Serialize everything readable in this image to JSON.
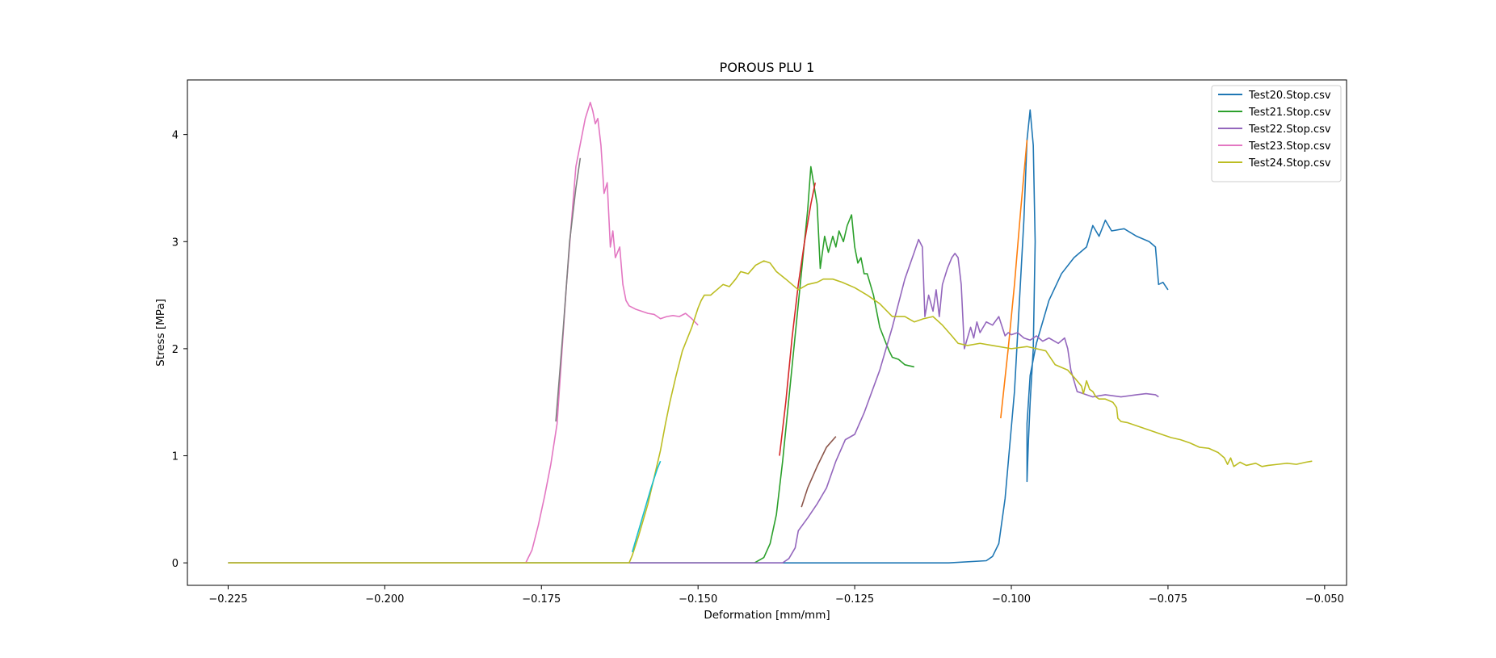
{
  "chart_data": {
    "type": "line",
    "title": "POROUS PLU 1",
    "xlabel": "Deformation [mm/mm]",
    "ylabel": "Stress [MPa]",
    "xlim": [
      -0.2315,
      -0.0465
    ],
    "ylim": [
      -0.21,
      4.51
    ],
    "xticks": [
      -0.225,
      -0.2,
      -0.175,
      -0.15,
      -0.125,
      -0.1,
      -0.075,
      -0.05
    ],
    "xtick_labels": [
      "−0.225",
      "−0.200",
      "−0.175",
      "−0.150",
      "−0.125",
      "−0.100",
      "−0.075",
      "−0.050"
    ],
    "yticks": [
      0,
      1,
      2,
      3,
      4
    ],
    "ytick_labels": [
      "0",
      "1",
      "2",
      "3",
      "4"
    ],
    "grid": false,
    "legend_position": "top-right",
    "series": [
      {
        "name": "Test20.Stop.csv",
        "color": "#1f77b4",
        "x": [
          -0.225,
          -0.2,
          -0.15,
          -0.11,
          -0.104,
          -0.103,
          -0.102,
          -0.101,
          -0.0995,
          -0.098,
          -0.0975,
          -0.097,
          -0.0965,
          -0.0962,
          -0.0965,
          -0.097,
          -0.0973,
          -0.0975,
          -0.0975,
          -0.097,
          -0.096,
          -0.095,
          -0.094,
          -0.092,
          -0.09,
          -0.088,
          -0.087,
          -0.086,
          -0.085,
          -0.084,
          -0.082,
          -0.08,
          -0.078,
          -0.077,
          -0.0765,
          -0.0758,
          -0.075
        ],
        "y": [
          0.0,
          0.0,
          0.0,
          0.0,
          0.02,
          0.06,
          0.18,
          0.6,
          1.6,
          3.2,
          3.95,
          4.23,
          3.9,
          3.0,
          2.0,
          1.5,
          1.1,
          0.76,
          1.3,
          1.75,
          2.05,
          2.25,
          2.45,
          2.7,
          2.85,
          2.95,
          3.15,
          3.05,
          3.2,
          3.1,
          3.12,
          3.05,
          3.0,
          2.95,
          2.6,
          2.62,
          2.55
        ]
      },
      {
        "name": "",
        "color": "#ff7f0e",
        "x": [
          -0.1017,
          -0.1005,
          -0.0995,
          -0.0985,
          -0.0975
        ],
        "y": [
          1.35,
          2.0,
          2.6,
          3.3,
          3.95
        ]
      },
      {
        "name": "Test21.Stop.csv",
        "color": "#2ca02c",
        "x": [
          -0.225,
          -0.2,
          -0.16,
          -0.141,
          -0.1395,
          -0.1385,
          -0.1375,
          -0.1365,
          -0.1325,
          -0.132,
          -0.131,
          -0.1305,
          -0.1298,
          -0.1292,
          -0.1285,
          -0.128,
          -0.1275,
          -0.1268,
          -0.1262,
          -0.1255,
          -0.125,
          -0.1245,
          -0.124,
          -0.1235,
          -0.123,
          -0.122,
          -0.1215,
          -0.121,
          -0.12,
          -0.1195,
          -0.119,
          -0.118,
          -0.117,
          -0.1155
        ],
        "y": [
          0.0,
          0.0,
          0.0,
          0.0,
          0.05,
          0.18,
          0.45,
          0.95,
          3.3,
          3.7,
          3.35,
          2.75,
          3.05,
          2.9,
          3.05,
          2.95,
          3.1,
          3.0,
          3.15,
          3.25,
          2.95,
          2.8,
          2.85,
          2.7,
          2.7,
          2.5,
          2.35,
          2.2,
          2.05,
          1.98,
          1.92,
          1.9,
          1.85,
          1.83
        ]
      },
      {
        "name": "",
        "color": "#d62728",
        "x": [
          -0.137,
          -0.136,
          -0.135,
          -0.134,
          -0.133,
          -0.132,
          -0.1313
        ],
        "y": [
          1.0,
          1.5,
          2.1,
          2.6,
          3.0,
          3.35,
          3.55
        ]
      },
      {
        "name": "Test22.Stop.csv",
        "color": "#9467bd",
        "x": [
          -0.225,
          -0.2,
          -0.16,
          -0.138,
          -0.1365,
          -0.1355,
          -0.1345,
          -0.134,
          -0.1325,
          -0.131,
          -0.1295,
          -0.128,
          -0.1265,
          -0.125,
          -0.1235,
          -0.121,
          -0.119,
          -0.117,
          -0.1155,
          -0.1148,
          -0.1142,
          -0.1138,
          -0.1132,
          -0.1125,
          -0.112,
          -0.1115,
          -0.111,
          -0.1102,
          -0.1095,
          -0.109,
          -0.1085,
          -0.108,
          -0.1075,
          -0.1065,
          -0.106,
          -0.1055,
          -0.105,
          -0.104,
          -0.103,
          -0.102,
          -0.101,
          -0.1005,
          -0.1,
          -0.099,
          -0.098,
          -0.097,
          -0.096,
          -0.095,
          -0.094,
          -0.0925,
          -0.0915,
          -0.091,
          -0.0905,
          -0.0895,
          -0.0885,
          -0.087,
          -0.085,
          -0.0825,
          -0.08,
          -0.0785,
          -0.077,
          -0.0765
        ],
        "y": [
          0.0,
          0.0,
          0.0,
          0.0,
          0.0,
          0.04,
          0.14,
          0.3,
          0.42,
          0.55,
          0.7,
          0.95,
          1.15,
          1.2,
          1.4,
          1.8,
          2.2,
          2.65,
          2.9,
          3.02,
          2.95,
          2.3,
          2.5,
          2.35,
          2.55,
          2.3,
          2.6,
          2.75,
          2.85,
          2.89,
          2.85,
          2.6,
          2.0,
          2.2,
          2.1,
          2.25,
          2.15,
          2.25,
          2.22,
          2.3,
          2.12,
          2.15,
          2.13,
          2.15,
          2.1,
          2.08,
          2.12,
          2.07,
          2.1,
          2.05,
          2.1,
          2.0,
          1.8,
          1.6,
          1.58,
          1.55,
          1.57,
          1.55,
          1.57,
          1.58,
          1.57,
          1.55
        ]
      },
      {
        "name": "",
        "color": "#8c564b",
        "x": [
          -0.1335,
          -0.1325,
          -0.131,
          -0.1295,
          -0.128
        ],
        "y": [
          0.52,
          0.7,
          0.9,
          1.08,
          1.18
        ]
      },
      {
        "name": "Test23.Stop.csv",
        "color": "#e377c2",
        "x": [
          -0.225,
          -0.2,
          -0.18,
          -0.1775,
          -0.1765,
          -0.1755,
          -0.1745,
          -0.1735,
          -0.1725,
          -0.171,
          -0.1695,
          -0.168,
          -0.1672,
          -0.1668,
          -0.1664,
          -0.166,
          -0.1655,
          -0.165,
          -0.1645,
          -0.164,
          -0.1636,
          -0.1632,
          -0.1625,
          -0.162,
          -0.1615,
          -0.161,
          -0.16,
          -0.159,
          -0.158,
          -0.157,
          -0.156,
          -0.155,
          -0.154,
          -0.153,
          -0.152,
          -0.151,
          -0.15
        ],
        "y": [
          0.0,
          0.0,
          0.0,
          0.0,
          0.12,
          0.35,
          0.62,
          0.92,
          1.3,
          2.6,
          3.7,
          4.15,
          4.3,
          4.22,
          4.1,
          4.15,
          3.9,
          3.45,
          3.55,
          2.95,
          3.1,
          2.85,
          2.95,
          2.6,
          2.45,
          2.4,
          2.37,
          2.35,
          2.33,
          2.32,
          2.28,
          2.3,
          2.31,
          2.3,
          2.33,
          2.28,
          2.22
        ]
      },
      {
        "name": "",
        "color": "#7f7f7f",
        "x": [
          -0.1727,
          -0.1715,
          -0.1705,
          -0.1695,
          -0.1688
        ],
        "y": [
          1.32,
          2.2,
          3.0,
          3.5,
          3.78
        ]
      },
      {
        "name": "Test24.Stop.csv",
        "color": "#bcbd22",
        "x": [
          -0.225,
          -0.2,
          -0.17,
          -0.161,
          -0.1605,
          -0.1595,
          -0.158,
          -0.157,
          -0.156,
          -0.1552,
          -0.1545,
          -0.1535,
          -0.1525,
          -0.151,
          -0.15,
          -0.1495,
          -0.149,
          -0.148,
          -0.147,
          -0.146,
          -0.145,
          -0.144,
          -0.1432,
          -0.142,
          -0.1408,
          -0.1395,
          -0.1385,
          -0.1375,
          -0.136,
          -0.135,
          -0.134,
          -0.1325,
          -0.131,
          -0.13,
          -0.1285,
          -0.127,
          -0.125,
          -0.123,
          -0.121,
          -0.119,
          -0.117,
          -0.1155,
          -0.114,
          -0.1125,
          -0.111,
          -0.1095,
          -0.1085,
          -0.107,
          -0.105,
          -0.103,
          -0.1,
          -0.0975,
          -0.096,
          -0.0945,
          -0.093,
          -0.091,
          -0.0898,
          -0.0888,
          -0.0885,
          -0.088,
          -0.0875,
          -0.087,
          -0.0865,
          -0.086,
          -0.085,
          -0.0838,
          -0.0832,
          -0.083,
          -0.0825,
          -0.0815,
          -0.08,
          -0.0785,
          -0.077,
          -0.0755,
          -0.0745,
          -0.073,
          -0.0715,
          -0.07,
          -0.0685,
          -0.067,
          -0.066,
          -0.0655,
          -0.065,
          -0.0645,
          -0.0635,
          -0.0625,
          -0.061,
          -0.06,
          -0.059,
          -0.0575,
          -0.056,
          -0.0545,
          -0.053,
          -0.052
        ],
        "y": [
          0.0,
          0.0,
          0.0,
          0.0,
          0.07,
          0.25,
          0.55,
          0.8,
          1.05,
          1.3,
          1.5,
          1.75,
          1.98,
          2.2,
          2.38,
          2.45,
          2.5,
          2.5,
          2.55,
          2.6,
          2.58,
          2.65,
          2.72,
          2.7,
          2.78,
          2.82,
          2.8,
          2.72,
          2.65,
          2.6,
          2.55,
          2.6,
          2.62,
          2.65,
          2.65,
          2.62,
          2.57,
          2.5,
          2.42,
          2.3,
          2.3,
          2.25,
          2.28,
          2.3,
          2.22,
          2.12,
          2.05,
          2.03,
          2.05,
          2.03,
          2.0,
          2.02,
          2.0,
          1.98,
          1.85,
          1.8,
          1.72,
          1.65,
          1.58,
          1.7,
          1.62,
          1.6,
          1.55,
          1.53,
          1.53,
          1.5,
          1.45,
          1.35,
          1.32,
          1.31,
          1.28,
          1.25,
          1.22,
          1.19,
          1.17,
          1.15,
          1.12,
          1.08,
          1.07,
          1.03,
          0.98,
          0.92,
          0.98,
          0.9,
          0.94,
          0.91,
          0.93,
          0.9,
          0.91,
          0.92,
          0.93,
          0.92,
          0.94,
          0.95
        ]
      },
      {
        "name": "",
        "color": "#17becf",
        "x": [
          -0.1605,
          -0.1595,
          -0.1585,
          -0.1575,
          -0.1565,
          -0.156
        ],
        "y": [
          0.1,
          0.3,
          0.5,
          0.7,
          0.88,
          0.95
        ]
      }
    ]
  }
}
